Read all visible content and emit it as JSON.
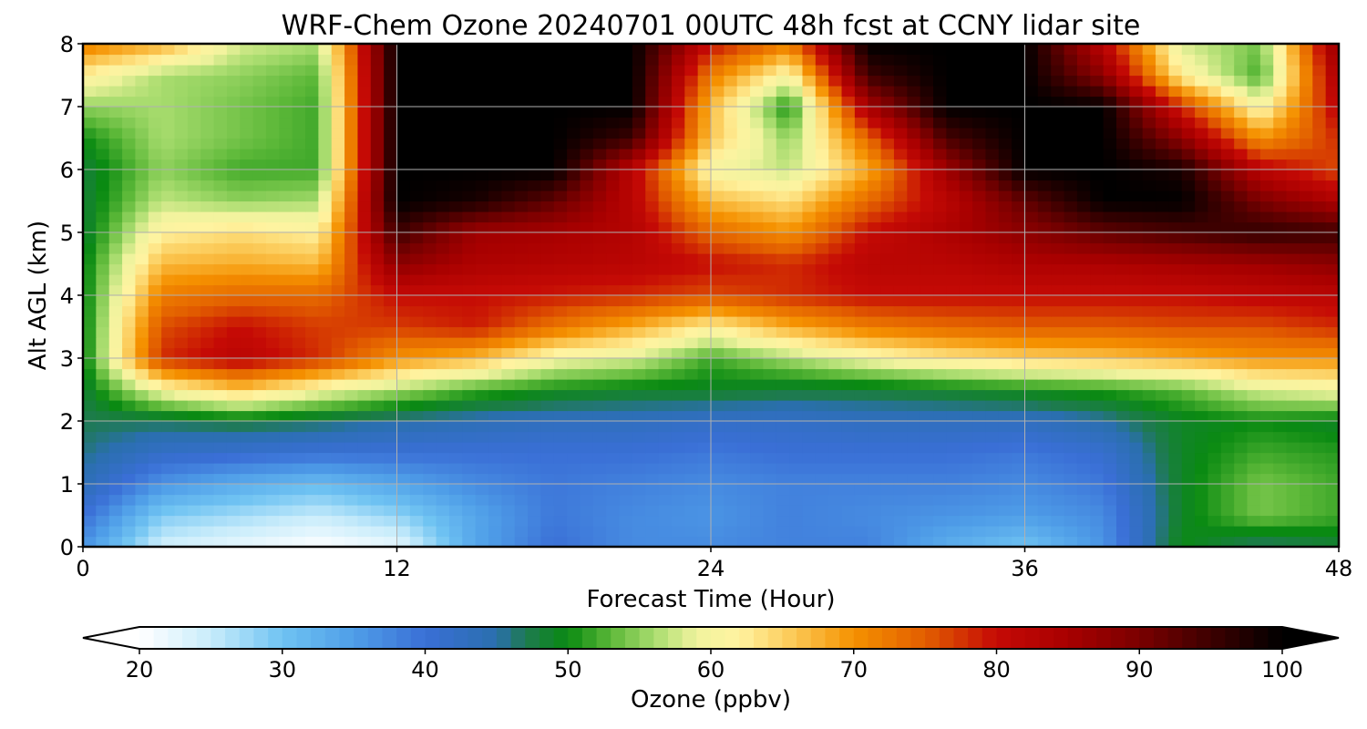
{
  "chart_data": {
    "type": "heatmap",
    "title": "WRF-Chem Ozone  20240701 00UTC 48h fcst at CCNY lidar site",
    "xlabel": "Forecast Time (Hour)",
    "ylabel": "Alt AGL (km)",
    "xlim": [
      0,
      48
    ],
    "ylim": [
      0,
      8
    ],
    "xticks": [
      0,
      12,
      24,
      36,
      48
    ],
    "yticks": [
      0,
      1,
      2,
      3,
      4,
      5,
      6,
      7,
      8
    ],
    "grid": true,
    "x": [
      0,
      3,
      6,
      9,
      12,
      15,
      18,
      21,
      24,
      27,
      30,
      33,
      36,
      39,
      42,
      45,
      48
    ],
    "y": [
      0,
      0.5,
      1,
      1.5,
      2,
      2.5,
      3,
      3.5,
      4,
      4.5,
      5,
      5.5,
      6,
      6.5,
      7,
      7.5,
      8
    ],
    "z": [
      [
        36,
        24,
        22,
        20,
        22,
        34,
        40,
        37,
        37,
        38,
        38,
        33,
        30,
        36,
        50,
        46,
        48
      ],
      [
        40,
        29,
        27,
        25,
        28,
        34,
        39,
        37,
        36,
        38,
        37,
        36,
        35,
        37,
        49,
        54,
        52
      ],
      [
        44,
        36,
        33,
        31,
        34,
        37,
        39,
        38,
        37,
        38,
        38,
        38,
        37,
        39,
        49,
        54,
        52
      ],
      [
        46,
        42,
        41,
        40,
        40,
        40,
        40,
        40,
        39,
        40,
        40,
        40,
        39,
        41,
        49,
        52,
        51
      ],
      [
        47,
        47,
        48,
        47,
        45,
        44,
        43,
        43,
        42,
        42,
        43,
        43,
        43,
        45,
        49,
        50,
        49
      ],
      [
        48,
        60,
        66,
        60,
        56,
        52,
        50,
        49,
        49,
        48,
        48,
        49,
        50,
        51,
        53,
        58,
        60
      ],
      [
        49,
        78,
        82,
        78,
        70,
        67,
        60,
        58,
        52,
        56,
        60,
        63,
        65,
        66,
        68,
        70,
        70
      ],
      [
        49,
        76,
        80,
        77,
        77,
        79,
        73,
        68,
        62,
        68,
        72,
        74,
        75,
        75,
        76,
        76,
        78
      ],
      [
        49,
        72,
        74,
        74,
        80,
        80,
        79,
        78,
        76,
        78,
        80,
        80,
        80,
        80,
        80,
        81,
        82
      ],
      [
        49,
        67,
        68,
        67,
        88,
        84,
        83,
        82,
        80,
        78,
        82,
        82,
        84,
        84,
        85,
        86,
        88
      ],
      [
        48,
        62,
        64,
        62,
        95,
        86,
        85,
        83,
        74,
        70,
        80,
        84,
        88,
        92,
        94,
        96,
        95
      ],
      [
        48,
        57,
        55,
        56,
        100,
        98,
        92,
        82,
        67,
        64,
        74,
        82,
        92,
        100,
        100,
        90,
        84
      ],
      [
        48,
        55,
        52,
        52,
        100,
        100,
        100,
        82,
        60,
        57,
        68,
        86,
        100,
        100,
        98,
        82,
        76
      ],
      [
        50,
        56,
        54,
        52,
        100,
        100,
        100,
        95,
        66,
        55,
        74,
        94,
        100,
        100,
        88,
        70,
        78
      ],
      [
        55,
        56,
        54,
        52,
        100,
        100,
        100,
        100,
        67,
        50,
        85,
        100,
        100,
        100,
        78,
        60,
        82
      ],
      [
        62,
        56,
        55,
        53,
        100,
        100,
        100,
        100,
        72,
        60,
        95,
        100,
        100,
        88,
        62,
        52,
        85
      ],
      [
        72,
        68,
        58,
        56,
        100,
        100,
        100,
        100,
        80,
        72,
        100,
        100,
        100,
        82,
        58,
        54,
        88
      ]
    ],
    "colorbar": {
      "label": "Ozone  (ppbv)",
      "min": 20,
      "max": 100,
      "ticks": [
        20,
        30,
        40,
        50,
        60,
        70,
        80,
        90,
        100
      ],
      "extend": "both",
      "color_stops": [
        {
          "v": 20,
          "c": "#ffffff"
        },
        {
          "v": 25,
          "c": "#c8ecfb"
        },
        {
          "v": 30,
          "c": "#6fc3f2"
        },
        {
          "v": 35,
          "c": "#4f9ee8"
        },
        {
          "v": 40,
          "c": "#3a6fd6"
        },
        {
          "v": 45,
          "c": "#2a6fae"
        },
        {
          "v": 47,
          "c": "#1e7a50"
        },
        {
          "v": 50,
          "c": "#0a8a12"
        },
        {
          "v": 53,
          "c": "#5cb838"
        },
        {
          "v": 56,
          "c": "#a8dc6e"
        },
        {
          "v": 59,
          "c": "#f0f39e"
        },
        {
          "v": 62,
          "c": "#fff3a0"
        },
        {
          "v": 66,
          "c": "#fbc651"
        },
        {
          "v": 70,
          "c": "#f59100"
        },
        {
          "v": 75,
          "c": "#e25e00"
        },
        {
          "v": 80,
          "c": "#c50a05"
        },
        {
          "v": 85,
          "c": "#a80000"
        },
        {
          "v": 90,
          "c": "#7a0000"
        },
        {
          "v": 95,
          "c": "#3d0000"
        },
        {
          "v": 100,
          "c": "#000000"
        }
      ]
    }
  }
}
